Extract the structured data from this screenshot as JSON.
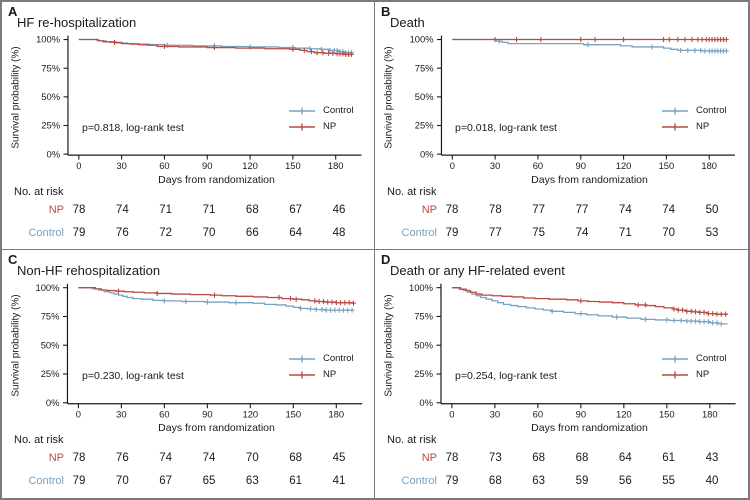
{
  "figure": {
    "colors": {
      "control": "#79a2c1",
      "np": "#b94a44",
      "axis": "#1a1a1a",
      "text": "#1a1a1a",
      "divider": "#7b7b7b",
      "background": "#ffffff"
    },
    "legend": {
      "control_label": "Control",
      "np_label": "NP"
    },
    "axis": {
      "y_label": "Survival probability (%)",
      "x_label": "Days from randomization",
      "y_ticks": [
        "100%",
        "75%",
        "50%",
        "25%",
        "0%"
      ],
      "x_ticks": [
        0,
        30,
        60,
        90,
        120,
        150,
        180
      ],
      "ylim": [
        0,
        100
      ],
      "xlim": [
        0,
        195
      ]
    },
    "risk_header": "No. at risk",
    "row_labels": {
      "np": "NP",
      "control": "Control"
    }
  },
  "chart_data": [
    {
      "type": "line",
      "letter": "A",
      "title": "HF re-hospitalization",
      "p_label": "p=0.818, log-rank test",
      "xlabel": "Days from randomization",
      "ylabel": "Survival probability (%)",
      "series": {
        "np": {
          "name": "NP",
          "steps": [
            [
              0,
              100
            ],
            [
              13,
              99
            ],
            [
              17,
              98
            ],
            [
              22,
              97.5
            ],
            [
              30,
              96.5
            ],
            [
              36,
              96
            ],
            [
              42,
              95.5
            ],
            [
              48,
              95
            ],
            [
              55,
              94
            ],
            [
              70,
              93.5
            ],
            [
              90,
              93
            ],
            [
              110,
              92.5
            ],
            [
              130,
              92
            ],
            [
              148,
              91.5
            ],
            [
              155,
              90.5
            ],
            [
              160,
              89.5
            ],
            [
              165,
              88.5
            ],
            [
              172,
              88
            ],
            [
              180,
              87.5
            ],
            [
              186,
              87
            ],
            [
              192,
              86.5
            ]
          ],
          "censors": [
            25,
            60,
            95,
            150,
            158,
            163,
            167,
            171,
            175,
            178,
            181,
            183,
            185,
            187,
            189,
            191
          ]
        },
        "control": {
          "name": "Control",
          "steps": [
            [
              0,
              100
            ],
            [
              14,
              99
            ],
            [
              19,
              98
            ],
            [
              26,
              97
            ],
            [
              34,
              96.5
            ],
            [
              42,
              96
            ],
            [
              50,
              95.5
            ],
            [
              60,
              95
            ],
            [
              80,
              94.5
            ],
            [
              100,
              94
            ],
            [
              120,
              93.5
            ],
            [
              140,
              93
            ],
            [
              152,
              92.5
            ],
            [
              162,
              92
            ],
            [
              170,
              91.5
            ],
            [
              176,
              90.5
            ],
            [
              182,
              89.5
            ],
            [
              187,
              88.5
            ],
            [
              192,
              88
            ]
          ],
          "censors": [
            62,
            95,
            120,
            150,
            162,
            170,
            176,
            179,
            181,
            183,
            185,
            187,
            189,
            191
          ]
        }
      },
      "risk": {
        "np": [
          78,
          74,
          71,
          71,
          68,
          67,
          46
        ],
        "control": [
          79,
          76,
          72,
          70,
          66,
          64,
          48
        ]
      }
    },
    {
      "type": "line",
      "letter": "B",
      "title": "Death",
      "p_label": "p=0.018, log-rank test",
      "xlabel": "Days from randomization",
      "ylabel": "Survival probability (%)",
      "series": {
        "np": {
          "name": "NP",
          "steps": [
            [
              0,
              100
            ],
            [
              192,
              100
            ]
          ],
          "censors": [
            30,
            45,
            62,
            90,
            100,
            120,
            148,
            152,
            158,
            163,
            168,
            172,
            175,
            178,
            180,
            182,
            184,
            186,
            188,
            190,
            192
          ]
        },
        "control": {
          "name": "Control",
          "steps": [
            [
              0,
              100
            ],
            [
              31,
              98.5
            ],
            [
              35,
              97.5
            ],
            [
              39,
              96.5
            ],
            [
              92,
              95.5
            ],
            [
              118,
              94.5
            ],
            [
              126,
              93.5
            ],
            [
              148,
              92.5
            ],
            [
              153,
              91.5
            ],
            [
              158,
              90.5
            ],
            [
              175,
              90
            ],
            [
              192,
              90
            ]
          ],
          "censors": [
            33,
            95,
            140,
            160,
            165,
            170,
            174,
            177,
            180,
            182,
            184,
            186,
            188,
            190,
            192
          ]
        }
      },
      "risk": {
        "np": [
          78,
          78,
          77,
          77,
          74,
          74,
          50
        ],
        "control": [
          79,
          77,
          75,
          74,
          71,
          70,
          53
        ]
      }
    },
    {
      "type": "line",
      "letter": "C",
      "title": "Non-HF rehospitalization",
      "p_label": "p=0.230, log-rank test",
      "xlabel": "Days from randomization",
      "ylabel": "Survival probability (%)",
      "series": {
        "np": {
          "name": "NP",
          "steps": [
            [
              0,
              100
            ],
            [
              12,
              99
            ],
            [
              16,
              98
            ],
            [
              20,
              97.5
            ],
            [
              26,
              97
            ],
            [
              32,
              96.5
            ],
            [
              38,
              96
            ],
            [
              46,
              95.5
            ],
            [
              55,
              95
            ],
            [
              65,
              94.5
            ],
            [
              78,
              94
            ],
            [
              92,
              93.5
            ],
            [
              100,
              93
            ],
            [
              110,
              92.5
            ],
            [
              122,
              92
            ],
            [
              132,
              91.5
            ],
            [
              142,
              90.5
            ],
            [
              150,
              90
            ],
            [
              156,
              89.5
            ],
            [
              161,
              88.5
            ],
            [
              166,
              88
            ],
            [
              172,
              87.5
            ],
            [
              180,
              87
            ],
            [
              192,
              86.5
            ]
          ],
          "censors": [
            28,
            55,
            95,
            140,
            148,
            152,
            165,
            168,
            171,
            174,
            177,
            180,
            183,
            186,
            189,
            192
          ]
        },
        "control": {
          "name": "Control",
          "steps": [
            [
              0,
              100
            ],
            [
              10,
              99
            ],
            [
              14,
              98
            ],
            [
              18,
              96.5
            ],
            [
              22,
              95.5
            ],
            [
              25,
              94.5
            ],
            [
              28,
              93.5
            ],
            [
              31,
              92.5
            ],
            [
              34,
              91.5
            ],
            [
              38,
              90.5
            ],
            [
              44,
              90
            ],
            [
              52,
              89
            ],
            [
              60,
              88.5
            ],
            [
              72,
              88
            ],
            [
              88,
              87.5
            ],
            [
              105,
              87
            ],
            [
              122,
              86.5
            ],
            [
              130,
              85.5
            ],
            [
              138,
              85
            ],
            [
              145,
              84
            ],
            [
              150,
              83
            ],
            [
              155,
              82
            ],
            [
              160,
              81.5
            ],
            [
              166,
              81
            ],
            [
              172,
              80.5
            ],
            [
              192,
              80
            ]
          ],
          "censors": [
            60,
            75,
            90,
            110,
            155,
            162,
            166,
            170,
            173,
            176,
            179,
            182,
            185,
            188,
            191
          ]
        }
      },
      "risk": {
        "np": [
          78,
          76,
          74,
          74,
          70,
          68,
          45
        ],
        "control": [
          79,
          70,
          67,
          65,
          63,
          61,
          41
        ]
      }
    },
    {
      "type": "line",
      "letter": "D",
      "title": "Death or any HF-related event",
      "p_label": "p=0.254, log-rank test",
      "xlabel": "Days from randomization",
      "ylabel": "Survival probability (%)",
      "series": {
        "np": {
          "name": "NP",
          "steps": [
            [
              0,
              100
            ],
            [
              6,
              98.7
            ],
            [
              10,
              97.5
            ],
            [
              13,
              96
            ],
            [
              17,
              94.5
            ],
            [
              21,
              93.5
            ],
            [
              28,
              93
            ],
            [
              35,
              92.5
            ],
            [
              42,
              92
            ],
            [
              50,
              91
            ],
            [
              58,
              90.5
            ],
            [
              68,
              90
            ],
            [
              80,
              89.5
            ],
            [
              88,
              88.5
            ],
            [
              95,
              88
            ],
            [
              103,
              87.5
            ],
            [
              112,
              87
            ],
            [
              120,
              86
            ],
            [
              128,
              85
            ],
            [
              136,
              84.5
            ],
            [
              142,
              83.5
            ],
            [
              148,
              82.5
            ],
            [
              154,
              81.5
            ],
            [
              158,
              80.5
            ],
            [
              163,
              79.5
            ],
            [
              168,
              79
            ],
            [
              173,
              78.5
            ],
            [
              178,
              77.5
            ],
            [
              184,
              77
            ],
            [
              192,
              76.5
            ]
          ],
          "censors": [
            90,
            130,
            135,
            155,
            158,
            161,
            164,
            167,
            170,
            173,
            176,
            179,
            182,
            185,
            188,
            191
          ]
        },
        "control": {
          "name": "Control",
          "steps": [
            [
              0,
              100
            ],
            [
              5,
              98.7
            ],
            [
              8,
              97.5
            ],
            [
              11,
              96
            ],
            [
              14,
              94.5
            ],
            [
              17,
              93
            ],
            [
              20,
              91.5
            ],
            [
              24,
              90
            ],
            [
              28,
              88.5
            ],
            [
              32,
              87
            ],
            [
              36,
              85.5
            ],
            [
              41,
              84.5
            ],
            [
              46,
              83.5
            ],
            [
              52,
              82.5
            ],
            [
              58,
              81.5
            ],
            [
              64,
              80.5
            ],
            [
              70,
              79.5
            ],
            [
              78,
              78.5
            ],
            [
              86,
              77.5
            ],
            [
              94,
              76.5
            ],
            [
              102,
              75.5
            ],
            [
              112,
              74.5
            ],
            [
              122,
              73.5
            ],
            [
              132,
              72.5
            ],
            [
              142,
              72
            ],
            [
              152,
              71.5
            ],
            [
              162,
              71
            ],
            [
              172,
              70.5
            ],
            [
              180,
              69.5
            ],
            [
              186,
              68.5
            ],
            [
              192,
              68
            ]
          ],
          "censors": [
            70,
            90,
            115,
            135,
            150,
            155,
            160,
            164,
            167,
            170,
            173,
            176,
            179,
            182,
            185,
            188
          ]
        }
      },
      "risk": {
        "np": [
          78,
          73,
          68,
          68,
          64,
          61,
          43
        ],
        "control": [
          79,
          68,
          63,
          59,
          56,
          55,
          40
        ]
      }
    }
  ]
}
